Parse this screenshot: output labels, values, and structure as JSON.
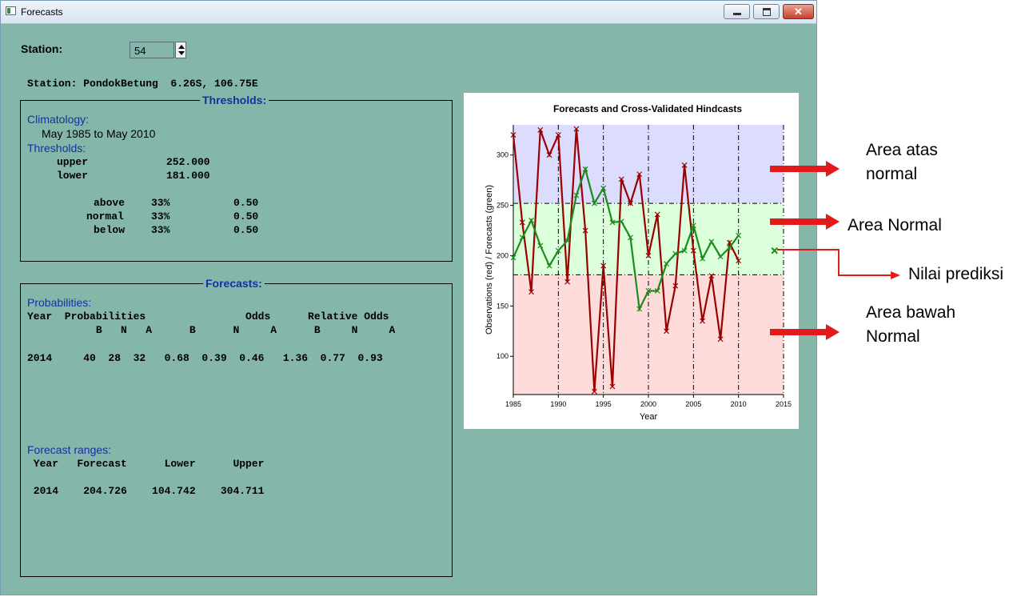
{
  "window": {
    "title": "Forecasts",
    "min_glyph": "",
    "max_glyph": "",
    "close_glyph": "✕"
  },
  "station": {
    "label": "Station:",
    "value": "54",
    "info": "Station: PondokBetung  6.26S, 106.75E"
  },
  "thresholds": {
    "group_title": "Thresholds:",
    "climatology_label": "Climatology:",
    "climatology_period": "May 1985 to May 2010",
    "thresholds_label": "Thresholds:",
    "upper_label": "upper",
    "upper_value": "252.000",
    "lower_label": "lower",
    "lower_value": "181.000",
    "rows": [
      {
        "name": "above",
        "pct": "33%",
        "odds": "0.50"
      },
      {
        "name": "normal",
        "pct": "33%",
        "odds": "0.50"
      },
      {
        "name": "below",
        "pct": "33%",
        "odds": "0.50"
      }
    ]
  },
  "forecasts": {
    "group_title": "Forecasts:",
    "probabilities_label": "Probabilities:",
    "header1": "Year  Probabilities                Odds      Relative Odds",
    "header2": "           B   N   A      B      N     A      B     N     A",
    "row": "2014     40  28  32   0.68  0.39  0.46   1.36  0.77  0.93",
    "ranges_label": "Forecast ranges:",
    "ranges_header": " Year   Forecast      Lower      Upper",
    "ranges_row": " 2014    204.726    104.742    304.711"
  },
  "chart_data": {
    "type": "line",
    "title": "Forecasts and Cross-Validated Hindcasts",
    "xlabel": "Year",
    "ylabel": "Observations (red) / Forecasts (green)",
    "xlim": [
      1985,
      2015
    ],
    "ylim": [
      62,
      330
    ],
    "xticks": [
      1985,
      1990,
      1995,
      2000,
      2005,
      2010,
      2015
    ],
    "yticks": [
      100,
      150,
      200,
      250,
      300
    ],
    "thresholds": {
      "upper": 252,
      "lower": 181
    },
    "bands": {
      "above": "#dcdcff",
      "normal": "#dcffdc",
      "below": "#ffdcdc"
    },
    "series": [
      {
        "name": "Observations",
        "color": "#990000",
        "x": [
          1985,
          1986,
          1987,
          1988,
          1989,
          1990,
          1991,
          1992,
          1993,
          1994,
          1995,
          1996,
          1997,
          1998,
          1999,
          2000,
          2001,
          2002,
          2003,
          2004,
          2005,
          2006,
          2007,
          2008,
          2009,
          2010
        ],
        "y": [
          320,
          233,
          164,
          325,
          300,
          320,
          174,
          326,
          225,
          65,
          190,
          70,
          276,
          252,
          281,
          200,
          241,
          125,
          170,
          290,
          205,
          135,
          180,
          117,
          213,
          195
        ]
      },
      {
        "name": "Forecasts",
        "color": "#1a8c1a",
        "x": [
          1985,
          1986,
          1987,
          1988,
          1989,
          1990,
          1991,
          1992,
          1993,
          1994,
          1995,
          1996,
          1997,
          1998,
          1999,
          2000,
          2001,
          2002,
          2003,
          2004,
          2005,
          2006,
          2007,
          2008,
          2009,
          2010
        ],
        "y": [
          198,
          218,
          235,
          210,
          190,
          205,
          215,
          260,
          286,
          252,
          267,
          233,
          234,
          218,
          147,
          165,
          165,
          192,
          202,
          205,
          230,
          197,
          214,
          199,
          208,
          220
        ]
      }
    ],
    "prediction": {
      "x": 2014,
      "y": 205,
      "color": "#1a8c1a"
    }
  },
  "annotations": {
    "above_line1": "Area atas",
    "above_line2": "normal",
    "normal": "Area Normal",
    "prediction": "Nilai prediksi",
    "below_line1": "Area bawah",
    "below_line2": "Normal"
  }
}
